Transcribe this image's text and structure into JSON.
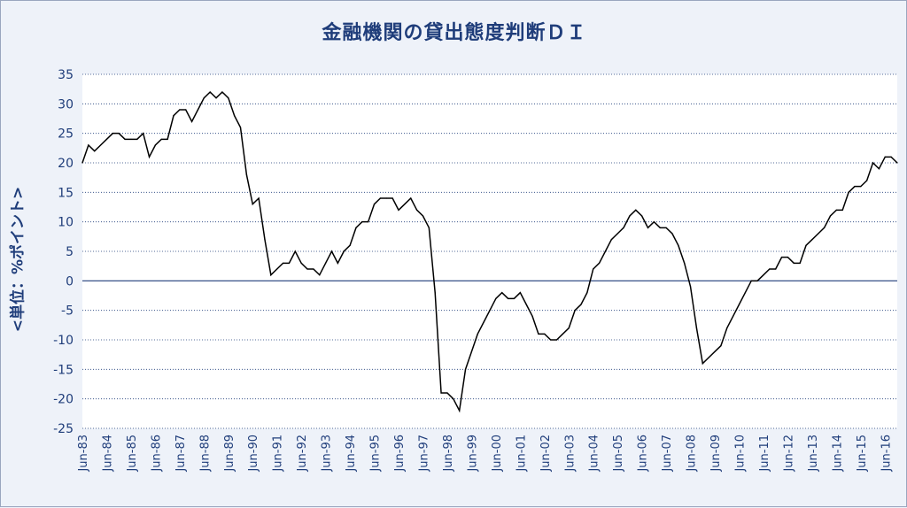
{
  "chart_data": {
    "type": "line",
    "title": "金融機関の貸出態度判断ＤＩ",
    "ylabel": "<単位：%ポイント>",
    "xlabel": "",
    "ylim": [
      -25,
      35
    ],
    "yticks": [
      35,
      30,
      25,
      20,
      15,
      10,
      5,
      0,
      -5,
      -10,
      -15,
      -20,
      -25
    ],
    "grid": "horizontal",
    "zero_line": true,
    "legend": "none",
    "colors": {
      "line": "#000000",
      "grid": "#1f3d7a",
      "zero_line": "#1f3d7a",
      "text": "#1f3d7a",
      "plot_bg": "#ffffff"
    },
    "x_tick_labels": [
      "Jun-83",
      "Jun-84",
      "Jun-85",
      "Jun-86",
      "Jun-87",
      "Jun-88",
      "Jun-89",
      "Jun-90",
      "Jun-91",
      "Jun-92",
      "Jun-93",
      "Jun-94",
      "Jun-95",
      "Jun-96",
      "Jun-97",
      "Jun-98",
      "Jun-99",
      "Jun-00",
      "Jun-01",
      "Jun-02",
      "Jun-03",
      "Jun-04",
      "Jun-05",
      "Jun-06",
      "Jun-07",
      "Jun-08",
      "Jun-09",
      "Jun-10",
      "Jun-11",
      "Jun-12",
      "Jun-13",
      "Jun-14",
      "Jun-15",
      "Jun-16"
    ],
    "x_start": "Jun-83",
    "x_frequency": "quarterly",
    "values": [
      20,
      23,
      22,
      23,
      24,
      25,
      25,
      24,
      24,
      24,
      25,
      21,
      23,
      24,
      24,
      28,
      29,
      29,
      27,
      29,
      31,
      32,
      31,
      32,
      31,
      28,
      26,
      18,
      13,
      14,
      7,
      1,
      2,
      3,
      3,
      5,
      3,
      2,
      2,
      1,
      3,
      5,
      3,
      5,
      6,
      9,
      10,
      10,
      13,
      14,
      14,
      14,
      12,
      13,
      14,
      12,
      11,
      9,
      -2,
      -19,
      -19,
      -20,
      -22,
      -15,
      -12,
      -9,
      -7,
      -5,
      -3,
      -2,
      -3,
      -3,
      -2,
      -4,
      -6,
      -9,
      -9,
      -10,
      -10,
      -9,
      -8,
      -5,
      -4,
      -2,
      2,
      3,
      5,
      7,
      8,
      9,
      11,
      12,
      11,
      9,
      10,
      9,
      9,
      8,
      6,
      3,
      -1,
      -8,
      -14,
      -13,
      -12,
      -11,
      -8,
      -6,
      -4,
      -2,
      0,
      0,
      1,
      2,
      2,
      4,
      4,
      3,
      3,
      6,
      7,
      8,
      9,
      11,
      12,
      12,
      15,
      16,
      16,
      17,
      20,
      19,
      21,
      21,
      20
    ]
  }
}
